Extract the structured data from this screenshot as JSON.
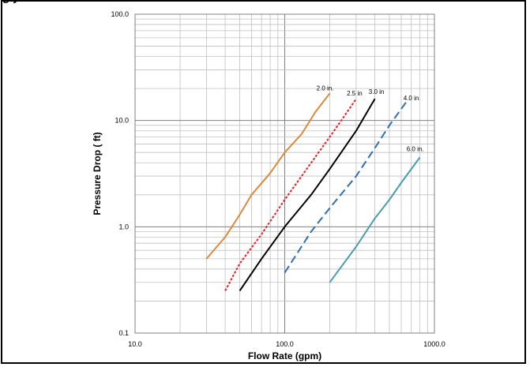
{
  "figure": {
    "caption_fragment": "g                                                       y"
  },
  "chart_data": {
    "type": "line",
    "title": "",
    "xlabel": "Flow Rate (gpm)",
    "ylabel": "Pressure Drop ( ft)",
    "x_scale": "log",
    "y_scale": "log",
    "xlim": [
      10,
      1000
    ],
    "ylim": [
      0.1,
      100
    ],
    "x_ticks": [
      "10.0",
      "100.0",
      "1000.0"
    ],
    "y_ticks": [
      "0.1",
      "1.0",
      "10.0",
      "100.0"
    ],
    "grid": true,
    "legend": "none (labels at line ends)",
    "series": [
      {
        "name": "2.0 in.",
        "color": "#d98a3a",
        "style": "solid",
        "points": [
          [
            30,
            0.5
          ],
          [
            40,
            0.8
          ],
          [
            50,
            1.3
          ],
          [
            60,
            2.0
          ],
          [
            80,
            3.2
          ],
          [
            100,
            5.0
          ],
          [
            130,
            7.5
          ],
          [
            160,
            12.0
          ],
          [
            200,
            18.0
          ]
        ]
      },
      {
        "name": "2.5 in",
        "color": "#e8202a",
        "style": "dotted",
        "points": [
          [
            40,
            0.25
          ],
          [
            50,
            0.45
          ],
          [
            70,
            0.85
          ],
          [
            100,
            1.8
          ],
          [
            150,
            4.0
          ],
          [
            200,
            7.0
          ],
          [
            250,
            11.0
          ],
          [
            300,
            16.0
          ]
        ]
      },
      {
        "name": "3.0 in",
        "color": "#000000",
        "style": "solid",
        "points": [
          [
            50,
            0.25
          ],
          [
            70,
            0.5
          ],
          [
            100,
            1.0
          ],
          [
            150,
            2.0
          ],
          [
            200,
            3.5
          ],
          [
            300,
            8.0
          ],
          [
            400,
            16.0
          ]
        ]
      },
      {
        "name": "4.0 in",
        "color": "#2f6fb0",
        "style": "dashed",
        "points": [
          [
            100,
            0.37
          ],
          [
            150,
            0.9
          ],
          [
            200,
            1.5
          ],
          [
            300,
            3.0
          ],
          [
            400,
            5.5
          ],
          [
            500,
            9.0
          ],
          [
            650,
            15.0
          ]
        ]
      },
      {
        "name": "6.0 in.",
        "color": "#4a9cae",
        "style": "solid",
        "points": [
          [
            200,
            0.3
          ],
          [
            300,
            0.65
          ],
          [
            400,
            1.2
          ],
          [
            500,
            1.8
          ],
          [
            600,
            2.6
          ],
          [
            800,
            4.5
          ]
        ]
      }
    ]
  }
}
